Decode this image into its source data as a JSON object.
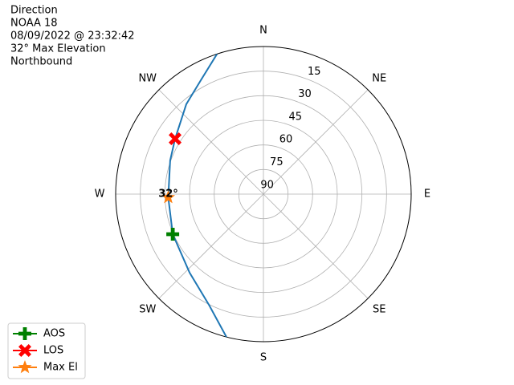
{
  "chart_data": {
    "type": "polar",
    "title_lines": [
      "Direction",
      "NOAA 18",
      "08/09/2022 @ 23:32:42",
      "32° Max Elevation",
      "Northbound"
    ],
    "rlim": [
      90,
      0
    ],
    "rticks": [
      15,
      30,
      45,
      60,
      75,
      90
    ],
    "thetaticks": [
      {
        "value": 0,
        "label": "N"
      },
      {
        "value": 45,
        "label": "NE"
      },
      {
        "value": 90,
        "label": "E"
      },
      {
        "value": 135,
        "label": "SE"
      },
      {
        "value": 180,
        "label": "S"
      },
      {
        "value": 225,
        "label": "SW"
      },
      {
        "value": 270,
        "label": "W"
      },
      {
        "value": 315,
        "label": "NW"
      }
    ],
    "grid": true,
    "legend": "lower left",
    "series": [
      {
        "color": "#1f77b4",
        "marker": "line",
        "x": [
          194.5,
          206.2,
          223.2,
          246.1,
          268,
          289.9,
          302.1,
          319.4,
          331.2,
          341.7
        ],
        "values": [
          0,
          14.8,
          24.3,
          29.6,
          32,
          29.6,
          26.5,
          17.8,
          10.8,
          0
        ]
      },
      {
        "name": "AOS",
        "color": "#008000",
        "marker": "plus",
        "x": [
          246.1
        ],
        "values": [
          29.6
        ]
      },
      {
        "name": "LOS",
        "color": "#ff0000",
        "marker": "x",
        "x": [
          302.1
        ],
        "values": [
          26.5
        ]
      },
      {
        "name": "Max El",
        "color": "#ff7f0e",
        "marker": "star",
        "x": [
          268
        ],
        "values": [
          32
        ]
      }
    ],
    "annotation": {
      "text": "32°",
      "x": 268,
      "value": 32
    }
  }
}
